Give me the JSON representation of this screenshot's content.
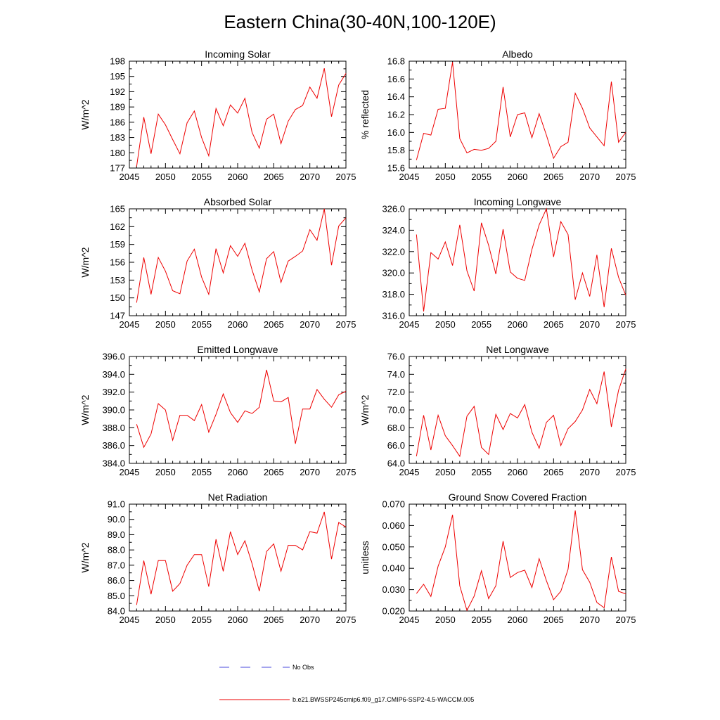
{
  "title": "Eastern China(30-40N,100-120E)",
  "legend": {
    "obs_label": "No Obs",
    "obs_color": "#4a4adc",
    "model_label": "b.e21.BWSSP245cmip6.f09_g17.CMIP6-SSP2-4.5-WACCM.005",
    "model_color": "#ee0000"
  },
  "chart_data": [
    {
      "type": "line",
      "title": "Incoming Solar",
      "ylabel": "W/m^2",
      "xlim": [
        2045,
        2075
      ],
      "ylim": [
        177,
        198
      ],
      "xticks": [
        "2045",
        "2050",
        "2055",
        "2060",
        "2065",
        "2070",
        "2075"
      ],
      "yticks": [
        "177",
        "180",
        "183",
        "186",
        "189",
        "192",
        "195",
        "198"
      ],
      "x": [
        2046,
        2047,
        2048,
        2049,
        2050,
        2051,
        2052,
        2053,
        2054,
        2055,
        2056,
        2057,
        2058,
        2059,
        2060,
        2061,
        2062,
        2063,
        2064,
        2065,
        2066,
        2067,
        2068,
        2069,
        2070,
        2071,
        2072,
        2073,
        2074,
        2075
      ],
      "values": [
        177.3,
        187.0,
        179.8,
        187.6,
        185.5,
        182.6,
        179.8,
        185.9,
        188.2,
        183.0,
        179.4,
        188.7,
        185.3,
        189.4,
        187.8,
        190.7,
        184.0,
        180.9,
        186.6,
        187.6,
        181.8,
        186.2,
        188.5,
        189.3,
        192.9,
        190.7,
        196.6,
        187.1,
        193.3,
        195.6
      ],
      "series_color": "#ee0000"
    },
    {
      "type": "line",
      "title": "Albedo",
      "ylabel": "% reflected",
      "xlim": [
        2045,
        2075
      ],
      "ylim": [
        15.6,
        16.8
      ],
      "xticks": [
        "2045",
        "2050",
        "2055",
        "2060",
        "2065",
        "2070",
        "2075"
      ],
      "yticks": [
        "15.6",
        "15.8",
        "16.0",
        "16.2",
        "16.4",
        "16.6",
        "16.8"
      ],
      "x": [
        2046,
        2047,
        2048,
        2049,
        2050,
        2051,
        2052,
        2053,
        2054,
        2055,
        2056,
        2057,
        2058,
        2059,
        2060,
        2061,
        2062,
        2063,
        2064,
        2065,
        2066,
        2067,
        2068,
        2069,
        2070,
        2071,
        2072,
        2073,
        2074,
        2075
      ],
      "values": [
        15.69,
        15.99,
        15.97,
        16.26,
        16.27,
        16.79,
        15.93,
        15.77,
        15.81,
        15.8,
        15.82,
        15.9,
        16.51,
        15.95,
        16.2,
        16.22,
        15.94,
        16.21,
        15.97,
        15.71,
        15.84,
        15.89,
        16.44,
        16.27,
        16.05,
        15.95,
        15.85,
        16.57,
        15.89,
        16.0
      ],
      "series_color": "#ee0000"
    },
    {
      "type": "line",
      "title": "Absorbed Solar",
      "ylabel": "W/m^2",
      "xlim": [
        2045,
        2075
      ],
      "ylim": [
        147,
        165
      ],
      "xticks": [
        "2045",
        "2050",
        "2055",
        "2060",
        "2065",
        "2070",
        "2075"
      ],
      "yticks": [
        "147",
        "150",
        "153",
        "156",
        "159",
        "162",
        "165"
      ],
      "x": [
        2046,
        2047,
        2048,
        2049,
        2050,
        2051,
        2052,
        2053,
        2054,
        2055,
        2056,
        2057,
        2058,
        2059,
        2060,
        2061,
        2062,
        2063,
        2064,
        2065,
        2066,
        2067,
        2068,
        2069,
        2070,
        2071,
        2072,
        2073,
        2074,
        2075
      ],
      "values": [
        149.2,
        156.8,
        150.6,
        156.8,
        154.5,
        151.2,
        150.7,
        156.2,
        158.2,
        153.5,
        150.6,
        158.3,
        154.2,
        158.8,
        157.0,
        159.2,
        154.7,
        151.0,
        156.6,
        157.8,
        152.6,
        156.2,
        157.0,
        157.9,
        161.5,
        159.7,
        165.0,
        155.5,
        162.1,
        163.5
      ],
      "series_color": "#ee0000"
    },
    {
      "type": "line",
      "title": "Incoming Longwave",
      "ylabel": "",
      "xlim": [
        2045,
        2075
      ],
      "ylim": [
        316,
        326
      ],
      "xticks": [
        "2045",
        "2050",
        "2055",
        "2060",
        "2065",
        "2070",
        "2075"
      ],
      "yticks": [
        "316.0",
        "318.0",
        "320.0",
        "322.0",
        "324.0",
        "326.0"
      ],
      "x": [
        2046,
        2047,
        2048,
        2049,
        2050,
        2051,
        2052,
        2053,
        2054,
        2055,
        2056,
        2057,
        2058,
        2059,
        2060,
        2061,
        2062,
        2063,
        2064,
        2065,
        2066,
        2067,
        2068,
        2069,
        2070,
        2071,
        2072,
        2073,
        2074,
        2075
      ],
      "values": [
        323.6,
        316.4,
        321.9,
        321.3,
        322.9,
        320.7,
        324.5,
        320.2,
        318.3,
        324.7,
        322.6,
        319.9,
        324.1,
        320.1,
        319.5,
        319.3,
        322.2,
        324.5,
        326.0,
        321.5,
        324.8,
        323.6,
        317.5,
        320.0,
        317.8,
        321.7,
        316.8,
        322.3,
        319.6,
        317.9
      ],
      "series_color": "#ee0000"
    },
    {
      "type": "line",
      "title": "Emitted Longwave",
      "ylabel": "W/m^2",
      "xlim": [
        2045,
        2075
      ],
      "ylim": [
        384,
        396
      ],
      "xticks": [
        "2045",
        "2050",
        "2055",
        "2060",
        "2065",
        "2070",
        "2075"
      ],
      "yticks": [
        "384.0",
        "386.0",
        "388.0",
        "390.0",
        "392.0",
        "394.0",
        "396.0"
      ],
      "x": [
        2046,
        2047,
        2048,
        2049,
        2050,
        2051,
        2052,
        2053,
        2054,
        2055,
        2056,
        2057,
        2058,
        2059,
        2060,
        2061,
        2062,
        2063,
        2064,
        2065,
        2066,
        2067,
        2068,
        2069,
        2070,
        2071,
        2072,
        2073,
        2074,
        2075
      ],
      "values": [
        388.4,
        385.8,
        387.3,
        390.7,
        390.0,
        386.6,
        389.4,
        389.4,
        388.8,
        390.6,
        387.5,
        389.5,
        391.8,
        389.7,
        388.6,
        389.9,
        389.6,
        390.3,
        394.5,
        391.0,
        390.9,
        391.4,
        386.2,
        390.1,
        390.1,
        392.3,
        391.2,
        390.3,
        391.7,
        392.1
      ],
      "series_color": "#ee0000"
    },
    {
      "type": "line",
      "title": "Net Longwave",
      "ylabel": "W/m^2",
      "xlim": [
        2045,
        2075
      ],
      "ylim": [
        64,
        76
      ],
      "xticks": [
        "2045",
        "2050",
        "2055",
        "2060",
        "2065",
        "2070",
        "2075"
      ],
      "yticks": [
        "64.0",
        "66.0",
        "68.0",
        "70.0",
        "72.0",
        "74.0",
        "76.0"
      ],
      "x": [
        2046,
        2047,
        2048,
        2049,
        2050,
        2051,
        2052,
        2053,
        2054,
        2055,
        2056,
        2057,
        2058,
        2059,
        2060,
        2061,
        2062,
        2063,
        2064,
        2065,
        2066,
        2067,
        2068,
        2069,
        2070,
        2071,
        2072,
        2073,
        2074,
        2075
      ],
      "values": [
        64.8,
        69.4,
        65.5,
        69.4,
        67.1,
        66.0,
        64.8,
        69.3,
        70.4,
        65.8,
        65.0,
        69.5,
        67.8,
        69.6,
        69.1,
        70.6,
        67.5,
        65.7,
        68.6,
        69.4,
        66.0,
        67.9,
        68.7,
        70.0,
        72.3,
        70.7,
        74.3,
        68.1,
        72.2,
        74.6
      ],
      "series_color": "#ee0000"
    },
    {
      "type": "line",
      "title": "Net Radiation",
      "ylabel": "W/m^2",
      "xlim": [
        2045,
        2075
      ],
      "ylim": [
        84,
        91
      ],
      "xticks": [
        "2045",
        "2050",
        "2055",
        "2060",
        "2065",
        "2070",
        "2075"
      ],
      "yticks": [
        "84.0",
        "85.0",
        "86.0",
        "87.0",
        "88.0",
        "89.0",
        "90.0",
        "91.0"
      ],
      "x": [
        2046,
        2047,
        2048,
        2049,
        2050,
        2051,
        2052,
        2053,
        2054,
        2055,
        2056,
        2057,
        2058,
        2059,
        2060,
        2061,
        2062,
        2063,
        2064,
        2065,
        2066,
        2067,
        2068,
        2069,
        2070,
        2071,
        2072,
        2073,
        2074,
        2075
      ],
      "values": [
        84.4,
        87.3,
        85.1,
        87.3,
        87.3,
        85.3,
        85.8,
        87.0,
        87.7,
        87.7,
        85.6,
        88.7,
        86.6,
        89.2,
        87.7,
        88.6,
        87.1,
        85.3,
        87.9,
        88.4,
        86.6,
        88.3,
        88.3,
        88.0,
        89.2,
        89.1,
        90.5,
        87.4,
        89.8,
        89.5
      ],
      "series_color": "#ee0000"
    },
    {
      "type": "line",
      "title": "Ground Snow Covered Fraction",
      "ylabel": "unitless",
      "xlim": [
        2045,
        2075
      ],
      "ylim": [
        0.02,
        0.07
      ],
      "xticks": [
        "2045",
        "2050",
        "2055",
        "2060",
        "2065",
        "2070",
        "2075"
      ],
      "yticks": [
        "0.020",
        "0.030",
        "0.040",
        "0.050",
        "0.060",
        "0.070"
      ],
      "x": [
        2046,
        2047,
        2048,
        2049,
        2050,
        2051,
        2052,
        2053,
        2054,
        2055,
        2056,
        2057,
        2058,
        2059,
        2060,
        2061,
        2062,
        2063,
        2064,
        2065,
        2066,
        2067,
        2068,
        2069,
        2070,
        2071,
        2072,
        2073,
        2074,
        2075
      ],
      "values": [
        0.0282,
        0.0325,
        0.0268,
        0.041,
        0.05,
        0.065,
        0.0318,
        0.0203,
        0.027,
        0.0388,
        0.0258,
        0.0318,
        0.0527,
        0.0357,
        0.038,
        0.0391,
        0.031,
        0.0445,
        0.0342,
        0.0253,
        0.0292,
        0.0395,
        0.067,
        0.0393,
        0.0335,
        0.024,
        0.0215,
        0.0453,
        0.0292,
        0.028
      ],
      "series_color": "#ee0000"
    }
  ]
}
